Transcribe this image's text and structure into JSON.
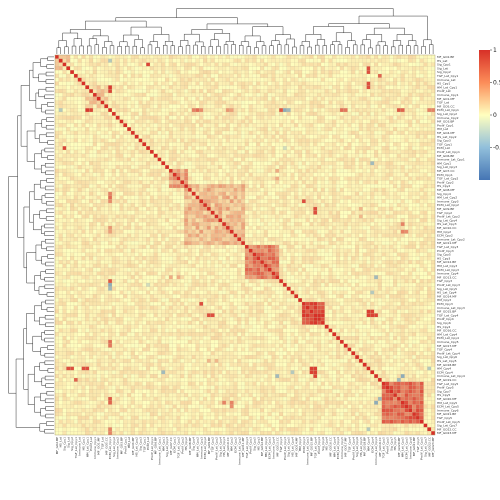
{
  "chart_data": {
    "type": "heatmap",
    "title": "",
    "xlabel": "",
    "ylabel": "",
    "matrix_size": 100,
    "dendrograms": {
      "rows": true,
      "columns": true
    },
    "grid": true,
    "legend": "right",
    "colorbar": {
      "min": -1,
      "max": 1,
      "ticks": [
        1,
        0.5,
        0,
        -0.5
      ],
      "tick_labels": [
        "1",
        "0.5",
        "0",
        "-0.5"
      ],
      "colors": {
        "low": "#4575b4",
        "mid": "#ffffbf",
        "high": "#d73027"
      }
    },
    "diagonal_value": 1,
    "background_correlation": 0.08,
    "clusters": [
      {
        "start": 86,
        "end": 96,
        "value": 0.72
      },
      {
        "start": 65,
        "end": 70,
        "value": 0.88
      },
      {
        "start": 50,
        "end": 58,
        "value": 0.6
      },
      {
        "start": 34,
        "end": 49,
        "value": 0.32
      },
      {
        "start": 30,
        "end": 34,
        "value": 0.42
      },
      {
        "start": 8,
        "end": 13,
        "value": 0.22
      },
      {
        "start": 0,
        "end": 3,
        "value": 0.2
      }
    ],
    "notable_cells": [
      {
        "row": 14,
        "col": 8,
        "value": 0.95
      },
      {
        "row": 14,
        "col": 9,
        "value": 0.9
      },
      {
        "row": 14,
        "col": 36,
        "value": 0.6
      },
      {
        "row": 14,
        "col": 37,
        "value": 0.7
      },
      {
        "row": 14,
        "col": 38,
        "value": 0.55
      },
      {
        "row": 14,
        "col": 60,
        "value": -0.6
      },
      {
        "row": 14,
        "col": 61,
        "value": -0.5
      },
      {
        "row": 14,
        "col": 75,
        "value": 0.7
      },
      {
        "row": 14,
        "col": 76,
        "value": 0.65
      },
      {
        "row": 14,
        "col": 90,
        "value": 0.8
      },
      {
        "row": 14,
        "col": 91,
        "value": 0.75
      },
      {
        "row": 14,
        "col": 1,
        "value": -0.4
      },
      {
        "row": 14,
        "col": 98,
        "value": 0.6
      },
      {
        "row": 14,
        "col": 99,
        "value": 0.6
      },
      {
        "row": 14,
        "col": 45,
        "value": 0.5
      },
      {
        "row": 14,
        "col": 46,
        "value": 0.45
      },
      {
        "row": 3,
        "col": 82,
        "value": 0.85
      },
      {
        "row": 4,
        "col": 82,
        "value": 0.85
      },
      {
        "row": 7,
        "col": 82,
        "value": 0.85
      },
      {
        "row": 8,
        "col": 82,
        "value": 0.85
      },
      {
        "row": 5,
        "col": 85,
        "value": 0.75
      },
      {
        "row": 2,
        "col": 24,
        "value": 0.9
      },
      {
        "row": 67,
        "col": 82,
        "value": 0.92
      },
      {
        "row": 67,
        "col": 83,
        "value": 0.92
      },
      {
        "row": 68,
        "col": 82,
        "value": 0.92
      },
      {
        "row": 68,
        "col": 83,
        "value": 0.92
      },
      {
        "row": 68,
        "col": 84,
        "value": 0.9
      },
      {
        "row": 65,
        "col": 38,
        "value": 0.85
      },
      {
        "row": 68,
        "col": 40,
        "value": 0.85
      },
      {
        "row": 68,
        "col": 41,
        "value": 0.85
      },
      {
        "row": 59,
        "col": 14,
        "value": 0.8
      },
      {
        "row": 44,
        "col": 91,
        "value": 0.6
      },
      {
        "row": 46,
        "col": 91,
        "value": 0.6
      },
      {
        "row": 46,
        "col": 92,
        "value": 0.55
      },
      {
        "row": 28,
        "col": 83,
        "value": -0.5
      },
      {
        "row": 58,
        "col": 84,
        "value": -0.5
      },
      {
        "row": 62,
        "col": 83,
        "value": -0.4
      },
      {
        "row": 90,
        "col": 85,
        "value": -0.5
      },
      {
        "row": 91,
        "col": 84,
        "value": -0.6
      },
      {
        "row": 98,
        "col": 82,
        "value": -0.4
      },
      {
        "row": 24,
        "col": 60,
        "value": -0.25
      },
      {
        "row": 30,
        "col": 58,
        "value": 0.4
      },
      {
        "row": 32,
        "col": 58,
        "value": 0.4
      },
      {
        "row": 40,
        "col": 80,
        "value": 0.35
      },
      {
        "row": 42,
        "col": 80,
        "value": 0.35
      }
    ],
    "row_labels": [
      "MF_GO2.BP",
      "HS_Lat",
      "Sig_Cpy1",
      "Sig_Lat",
      "Sig_Cpy2",
      "TGF_Lat_Cpy1",
      "Immune_Lat",
      "HS_Cpy1",
      "HM_Lat_Cpy1",
      "Prolif_Lat",
      "Immune_Cpy1",
      "MF_GO1.MF",
      "TGF_Lat",
      "MF_GO5.CC",
      "ECM_Lat_Cpy1",
      "Sig_Lat_Cpy2",
      "Immune_Cpy2",
      "MF_GO3.BP",
      "Prolif_Cpy1",
      "HM_Lat",
      "MF_GO4.MF",
      "HS_Lat_Cpy2",
      "Sig_Cpy3",
      "TGF_Cpy1",
      "ECM_Lat",
      "Prolif_Lat_Cpy1",
      "MF_GO6.BP",
      "Immune_Lat_Cpy1",
      "HM_Cpy1",
      "Sig_Lat_Cpy3",
      "MF_GO7.CC",
      "ECM_Cpy1",
      "TGF_Lat_Cpy2",
      "Prolif_Cpy2",
      "HS_Cpy2",
      "MF_GO8.MF",
      "Sig_Cpy4",
      "HM_Lat_Cpy2",
      "Immune_Cpy3",
      "ECM_Lat_Cpy2",
      "MF_GO9.BP",
      "TGF_Cpy2",
      "Prolif_Lat_Cpy2",
      "Sig_Lat_Cpy4",
      "HS_Lat_Cpy3",
      "MF_GO10.CC",
      "HM_Cpy2",
      "ECM_Cpy2",
      "Immune_Lat_Cpy2",
      "MF_GO11.MF",
      "TGF_Lat_Cpy3",
      "Prolif_Cpy3",
      "Sig_Cpy5",
      "HS_Cpy3",
      "MF_GO12.BP",
      "HM_Lat_Cpy3",
      "ECM_Lat_Cpy3",
      "Immune_Cpy4",
      "MF_GO13.CC",
      "TGF_Cpy3",
      "Prolif_Lat_Cpy3",
      "Sig_Lat_Cpy5",
      "HS_Lat_Cpy4",
      "MF_GO14.MF",
      "HM_Cpy3",
      "ECM_Cpy3",
      "Immune_Lat_Cpy3",
      "MF_GO15.BP",
      "TGF_Lat_Cpy4",
      "Prolif_Cpy4",
      "Sig_Cpy6",
      "HS_Cpy4",
      "MF_GO16.CC",
      "HM_Lat_Cpy4",
      "ECM_Lat_Cpy4",
      "Immune_Cpy5",
      "MF_GO17.MF",
      "TGF_Cpy4",
      "Prolif_Lat_Cpy4",
      "Sig_Lat_Cpy6",
      "HS_Lat_Cpy5",
      "MF_GO18.BP",
      "HM_Cpy4",
      "ECM_Cpy4",
      "Immune_Lat_Cpy4",
      "MF_GO19.CC",
      "TGF_Lat_Cpy5",
      "Prolif_Cpy5",
      "Sig_Cpy7",
      "HS_Cpy5",
      "MF_GO20.MF",
      "HM_Lat_Cpy5",
      "ECM_Lat_Cpy5",
      "Immune_Cpy6",
      "MF_GO21.BP",
      "TGF_Cpy5",
      "Prolif_Lat_Cpy5",
      "Sig_Lat_Cpy7",
      "MF_GO22.CC",
      "MF_GO23.MF"
    ]
  }
}
